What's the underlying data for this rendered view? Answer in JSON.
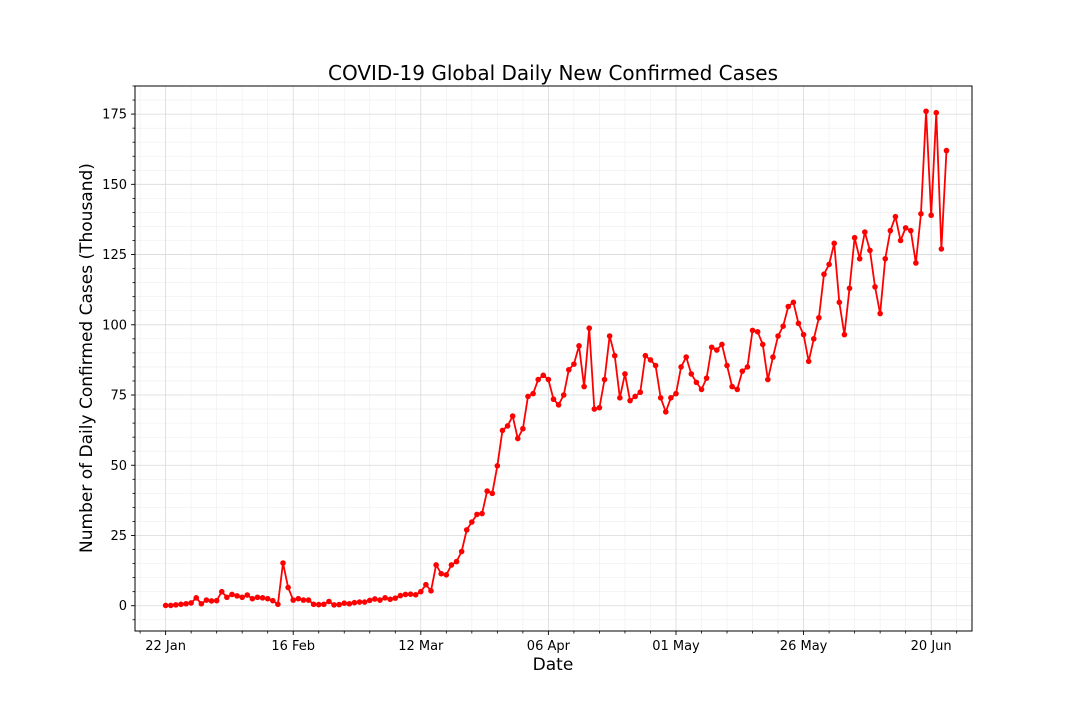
{
  "chart_data": {
    "type": "line",
    "title": "COVID-19 Global Daily New Confirmed Cases",
    "xlabel": "Date",
    "ylabel": "Number of Daily Confirmed Cases (Thousand)",
    "x_start": "2020-01-22",
    "x_end": "2020-06-21",
    "xlim": [
      "2020-01-16",
      "2020-06-28"
    ],
    "ylim": [
      -9,
      185
    ],
    "x_ticks": [
      {
        "date": "2020-01-22",
        "label": "22 Jan"
      },
      {
        "date": "2020-02-16",
        "label": "16 Feb"
      },
      {
        "date": "2020-03-12",
        "label": "12 Mar"
      },
      {
        "date": "2020-04-06",
        "label": "06 Apr"
      },
      {
        "date": "2020-05-01",
        "label": "01 May"
      },
      {
        "date": "2020-05-26",
        "label": "26 May"
      },
      {
        "date": "2020-06-20",
        "label": "20 Jun"
      }
    ],
    "y_ticks": [
      0,
      25,
      50,
      75,
      100,
      125,
      150,
      175
    ],
    "grid": true,
    "legend": "none",
    "series": [
      {
        "color": "#ff0000",
        "marker": "circle",
        "values": [
          0.1,
          0.1,
          0.3,
          0.5,
          0.7,
          1.0,
          2.8,
          0.7,
          2.0,
          1.7,
          1.8,
          5.0,
          3.0,
          4.0,
          3.5,
          3.0,
          3.8,
          2.5,
          3.0,
          2.8,
          2.5,
          1.8,
          0.5,
          15.2,
          6.5,
          2.0,
          2.5,
          2.0,
          2.0,
          0.5,
          0.4,
          0.5,
          1.5,
          0.3,
          0.4,
          0.9,
          0.7,
          1.1,
          1.3,
          1.3,
          1.9,
          2.4,
          2.0,
          2.8,
          2.3,
          2.7,
          3.6,
          4.0,
          4.1,
          3.9,
          5.0,
          7.5,
          5.3,
          14.5,
          11.4,
          11.0,
          14.5,
          15.7,
          19.3,
          27.0,
          29.8,
          32.5,
          32.8,
          40.8,
          40.0,
          49.8,
          62.4,
          64.0,
          67.5,
          59.5,
          63.0,
          74.5,
          75.5,
          80.5,
          82.0,
          80.5,
          73.5,
          71.5,
          75.0,
          84.0,
          86.0,
          92.5,
          78.0,
          98.8,
          70.0,
          70.5,
          80.5,
          96.0,
          89.0,
          74.0,
          82.5,
          73.0,
          74.5,
          76.0,
          89.0,
          87.5,
          85.5,
          74.0,
          69.0,
          74.0,
          75.5,
          85.0,
          88.5,
          82.5,
          79.5,
          77.0,
          81.0,
          92.0,
          91.0,
          93.0,
          85.5,
          78.0,
          77.0,
          83.5,
          85.0,
          98.0,
          97.5,
          93.0,
          80.5,
          88.5,
          96.0,
          99.5,
          106.5,
          108.0,
          100.5,
          96.5,
          87.0,
          95.0,
          102.5,
          118.0,
          121.5,
          129.0,
          108.0,
          96.5,
          113.0,
          131.0,
          123.5,
          133.0,
          126.5,
          113.5,
          104.0,
          123.5,
          133.5,
          138.5,
          130.0,
          134.5,
          133.5,
          122.0,
          139.5,
          176.0,
          139.0,
          175.5,
          127.0,
          162.0
        ]
      }
    ]
  }
}
